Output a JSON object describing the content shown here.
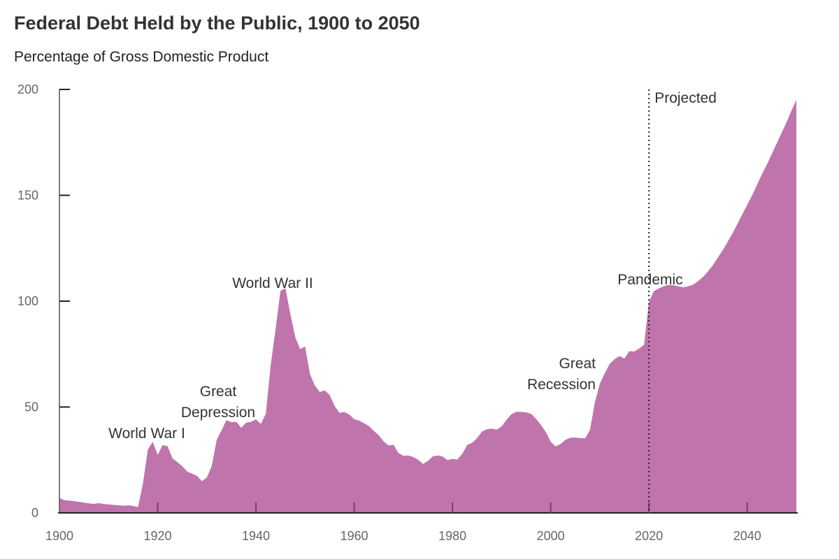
{
  "chart_data": {
    "type": "area",
    "title": "Federal Debt Held by the Public, 1900 to 2050",
    "subtitle": "Percentage of Gross Domestic Product",
    "xlabel": "",
    "ylabel": "",
    "xlim": [
      1900,
      2050
    ],
    "ylim": [
      0,
      200
    ],
    "x_ticks": [
      "1900",
      "1920",
      "1940",
      "1960",
      "1980",
      "2000",
      "2020",
      "2040"
    ],
    "y_ticks": [
      "0",
      "50",
      "100",
      "150",
      "200"
    ],
    "grid": false,
    "fill_color": "#c074ac",
    "projection_start": 2020,
    "projection_label": "Projected",
    "annotations": [
      {
        "lines": [
          "World War I"
        ],
        "year": 1918
      },
      {
        "lines": [
          "Great",
          "Depression"
        ],
        "year": 1932
      },
      {
        "lines": [
          "World War II"
        ],
        "year": 1946
      },
      {
        "lines": [
          "Great",
          "Recession"
        ],
        "year": 2008
      },
      {
        "lines": [
          "Pandemic"
        ],
        "year": 2020
      }
    ],
    "x_start": 1900,
    "values": [
      7,
      6,
      5.8,
      5.5,
      5.2,
      4.9,
      4.5,
      4.3,
      4.6,
      4.2,
      4,
      3.8,
      3.6,
      3.4,
      3.6,
      3.3,
      2.7,
      14,
      30,
      33.6,
      27.4,
      32,
      31.5,
      25.8,
      24,
      22,
      19.5,
      18.5,
      17.5,
      15,
      16.7,
      22,
      34.5,
      39,
      43.8,
      42.8,
      43,
      40.2,
      42.6,
      43,
      44.2,
      42,
      46.8,
      69.5,
      87,
      104.9,
      106.1,
      94,
      83,
      77.3,
      78.6,
      65.5,
      60.1,
      57.1,
      57.9,
      55.7,
      50.6,
      47.2,
      47.7,
      46.4,
      44.3,
      43.6,
      42.3,
      41,
      38.7,
      36.7,
      33.7,
      31.8,
      32.2,
      28.3,
      27,
      27.1,
      26.4,
      25.1,
      23.1,
      24.5,
      26.7,
      27.1,
      26.6,
      24.9,
      25.5,
      25.2,
      27.9,
      32.1,
      33.1,
      35.3,
      38.4,
      39.5,
      39.8,
      39.3,
      40.8,
      44,
      46.6,
      47.8,
      47.7,
      47.5,
      46.8,
      44.5,
      41.6,
      38.2,
      33.6,
      31.4,
      32.5,
      34.5,
      35.5,
      35.6,
      35.3,
      35.2,
      39.2,
      52.3,
      60.9,
      65.9,
      70.4,
      72.6,
      74.1,
      72.9,
      76.4,
      76.2,
      77.6,
      79.4,
      99.8,
      104.7,
      106,
      107,
      107.7,
      107.5,
      107,
      106.5,
      107,
      107.8,
      109.5,
      111.5,
      114,
      117,
      120.5,
      124,
      128,
      132,
      136.5,
      141,
      145.5,
      150,
      155,
      160,
      164.5,
      169.5,
      174.5,
      179.5,
      184.5,
      190,
      195
    ]
  }
}
